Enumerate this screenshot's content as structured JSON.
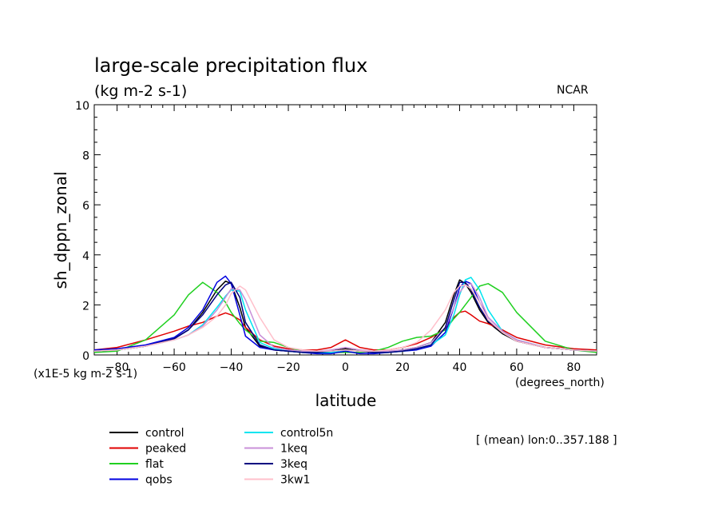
{
  "header": {
    "title": "large-scale precipitation flux",
    "units": "(kg m-2 s-1)",
    "ncar": "NCAR",
    "scale_note": "(x1E-5 kg m-2 s-1)",
    "x_units": "(degrees_north)",
    "mean_note": "[ (mean) lon:0..357.188 ]"
  },
  "chart_data": {
    "type": "line",
    "title": "large-scale precipitation flux",
    "xlabel": "latitude",
    "ylabel": "sh_dppn_zonal",
    "xlim": [
      -88,
      88
    ],
    "ylim": [
      0,
      10
    ],
    "xticks": [
      -80,
      -60,
      -40,
      -20,
      0,
      20,
      40,
      60,
      80
    ],
    "yticks": [
      0,
      2,
      4,
      6,
      8,
      10
    ],
    "x": [
      -88,
      -80,
      -70,
      -60,
      -55,
      -50,
      -45,
      -42,
      -40,
      -37,
      -35,
      -30,
      -25,
      -20,
      -15,
      -10,
      -5,
      0,
      5,
      10,
      15,
      20,
      25,
      30,
      35,
      38,
      40,
      42,
      44,
      47,
      50,
      55,
      60,
      70,
      80,
      88
    ],
    "series": [
      {
        "name": "control",
        "color": "#000000",
        "values": [
          0.15,
          0.2,
          0.35,
          0.65,
          1.0,
          1.7,
          2.6,
          2.95,
          2.85,
          1.9,
          1.1,
          0.35,
          0.2,
          0.15,
          0.1,
          0.1,
          0.15,
          0.25,
          0.15,
          0.1,
          0.12,
          0.2,
          0.3,
          0.5,
          1.3,
          2.4,
          3.0,
          2.85,
          2.5,
          1.8,
          1.3,
          0.85,
          0.55,
          0.3,
          0.2,
          0.15
        ]
      },
      {
        "name": "peaked",
        "color": "#e00000",
        "values": [
          0.2,
          0.3,
          0.6,
          0.95,
          1.15,
          1.3,
          1.55,
          1.68,
          1.6,
          1.4,
          1.1,
          0.6,
          0.35,
          0.25,
          0.2,
          0.2,
          0.3,
          0.6,
          0.3,
          0.2,
          0.2,
          0.3,
          0.45,
          0.7,
          1.05,
          1.5,
          1.7,
          1.75,
          1.6,
          1.35,
          1.25,
          1.0,
          0.7,
          0.4,
          0.25,
          0.2
        ]
      },
      {
        "name": "flat",
        "color": "#20d020",
        "values": [
          0.1,
          0.15,
          0.6,
          1.6,
          2.4,
          2.9,
          2.5,
          2.1,
          1.7,
          1.25,
          1.0,
          0.55,
          0.5,
          0.3,
          0.15,
          0.1,
          0.1,
          0.1,
          0.1,
          0.15,
          0.3,
          0.55,
          0.7,
          0.75,
          1.0,
          1.45,
          1.7,
          2.0,
          2.3,
          2.75,
          2.85,
          2.5,
          1.7,
          0.55,
          0.2,
          0.1
        ]
      },
      {
        "name": "qobs",
        "color": "#0000e0",
        "values": [
          0.2,
          0.25,
          0.4,
          0.7,
          1.1,
          1.8,
          2.9,
          3.15,
          2.85,
          1.6,
          0.75,
          0.3,
          0.2,
          0.15,
          0.1,
          0.05,
          0.05,
          0.15,
          0.05,
          0.05,
          0.1,
          0.15,
          0.2,
          0.35,
          0.9,
          1.9,
          2.7,
          2.95,
          2.85,
          2.1,
          1.5,
          0.95,
          0.6,
          0.3,
          0.2,
          0.15
        ]
      },
      {
        "name": "control5n",
        "color": "#00e5f0",
        "values": [
          0.15,
          0.2,
          0.35,
          0.6,
          0.8,
          1.2,
          1.9,
          2.35,
          2.6,
          2.55,
          1.8,
          0.5,
          0.25,
          0.15,
          0.1,
          0.1,
          0.1,
          0.2,
          0.15,
          0.1,
          0.1,
          0.15,
          0.25,
          0.4,
          0.8,
          1.6,
          2.4,
          3.0,
          3.1,
          2.6,
          1.8,
          0.95,
          0.6,
          0.3,
          0.2,
          0.15
        ]
      },
      {
        "name": "1keq",
        "color": "#c890d8",
        "values": [
          0.15,
          0.2,
          0.35,
          0.6,
          0.8,
          1.15,
          1.8,
          2.3,
          2.65,
          2.6,
          2.2,
          0.8,
          0.3,
          0.2,
          0.15,
          0.15,
          0.2,
          0.3,
          0.2,
          0.15,
          0.15,
          0.2,
          0.3,
          0.5,
          1.1,
          1.9,
          2.5,
          2.8,
          2.85,
          2.3,
          1.5,
          0.95,
          0.6,
          0.3,
          0.2,
          0.15
        ]
      },
      {
        "name": "3keq",
        "color": "#000080",
        "values": [
          0.15,
          0.2,
          0.35,
          0.65,
          1.0,
          1.6,
          2.4,
          2.8,
          2.9,
          2.3,
          1.3,
          0.4,
          0.2,
          0.15,
          0.1,
          0.1,
          0.15,
          0.2,
          0.15,
          0.1,
          0.1,
          0.15,
          0.25,
          0.4,
          1.1,
          2.2,
          2.9,
          2.9,
          2.6,
          1.9,
          1.35,
          0.9,
          0.55,
          0.3,
          0.2,
          0.15
        ]
      },
      {
        "name": "3kw1",
        "color": "#ffc0cb",
        "values": [
          0.15,
          0.2,
          0.35,
          0.6,
          0.8,
          1.1,
          1.55,
          2.0,
          2.45,
          2.75,
          2.6,
          1.5,
          0.6,
          0.3,
          0.2,
          0.15,
          0.15,
          0.2,
          0.15,
          0.15,
          0.2,
          0.3,
          0.5,
          1.0,
          1.8,
          2.5,
          2.75,
          2.8,
          2.65,
          2.1,
          1.4,
          0.9,
          0.55,
          0.3,
          0.2,
          0.15
        ]
      }
    ]
  }
}
